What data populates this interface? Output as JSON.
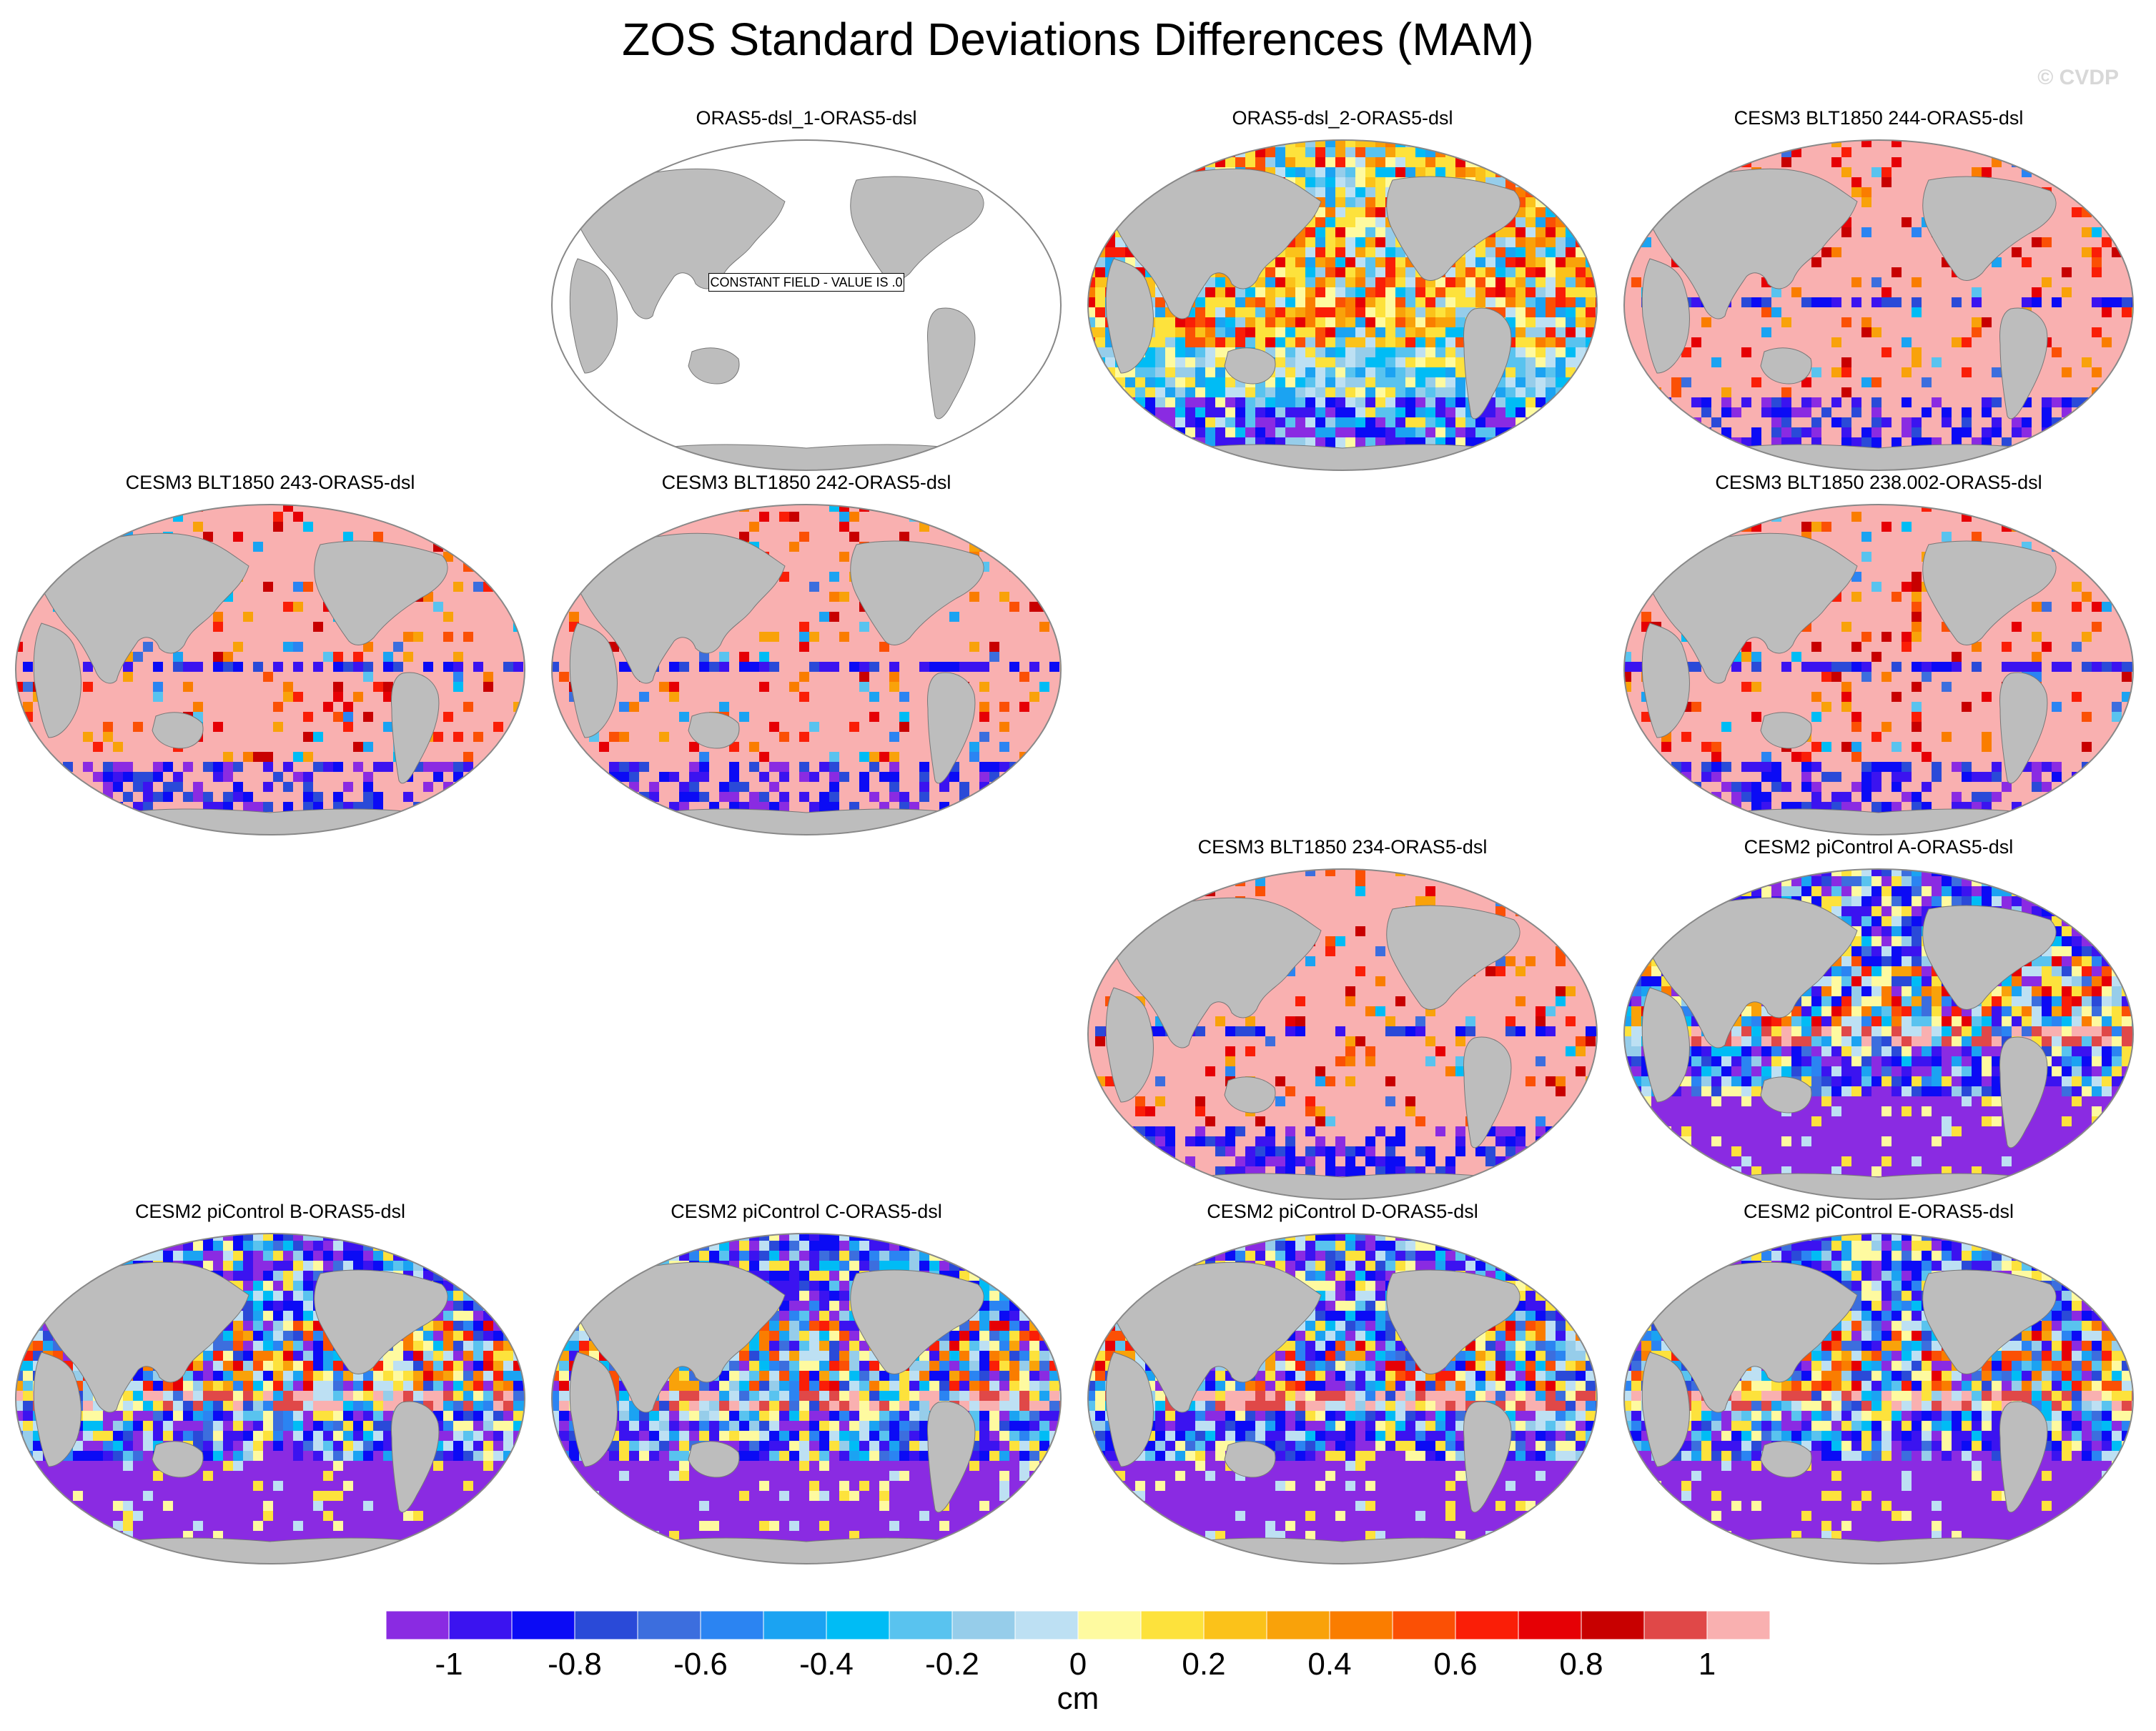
{
  "title": "ZOS Standard Deviations Differences (MAM)",
  "watermark": "© CVDP",
  "panels": [
    {
      "label": "ORAS5-dsl_1-ORAS5-dsl",
      "row": 0,
      "col": 1,
      "pattern": "constant"
    },
    {
      "label": "ORAS5-dsl_2-ORAS5-dsl",
      "row": 0,
      "col": 2,
      "pattern": "mixed"
    },
    {
      "label": "CESM3 BLT1850 244-ORAS5-dsl",
      "row": 0,
      "col": 3,
      "pattern": "pink"
    },
    {
      "label": "CESM3 BLT1850 243-ORAS5-dsl",
      "row": 1,
      "col": 0,
      "pattern": "pink"
    },
    {
      "label": "CESM3 BLT1850 242-ORAS5-dsl",
      "row": 1,
      "col": 1,
      "pattern": "pink"
    },
    {
      "label": "CESM3 BLT1850 238.002-ORAS5-dsl",
      "row": 1,
      "col": 3,
      "pattern": "pink"
    },
    {
      "label": "CESM3 BLT1850 234-ORAS5-dsl",
      "row": 2,
      "col": 2,
      "pattern": "pink"
    },
    {
      "label": "CESM2 piControl A-ORAS5-dsl",
      "row": 2,
      "col": 3,
      "pattern": "purple"
    },
    {
      "label": "CESM2 piControl B-ORAS5-dsl",
      "row": 3,
      "col": 0,
      "pattern": "purple"
    },
    {
      "label": "CESM2 piControl C-ORAS5-dsl",
      "row": 3,
      "col": 1,
      "pattern": "purple"
    },
    {
      "label": "CESM2 piControl D-ORAS5-dsl",
      "row": 3,
      "col": 2,
      "pattern": "purple"
    },
    {
      "label": "CESM2 piControl E-ORAS5-dsl",
      "row": 3,
      "col": 3,
      "pattern": "purple"
    }
  ],
  "constant_field_note": "CONSTANT FIELD - VALUE IS .0",
  "colorbar": {
    "units": "cm",
    "levels": [
      -1,
      -0.9,
      -0.8,
      -0.7,
      -0.6,
      -0.5,
      -0.4,
      -0.3,
      -0.2,
      -0.1,
      0,
      0.1,
      0.2,
      0.3,
      0.4,
      0.5,
      0.6,
      0.7,
      0.8,
      0.9,
      1
    ],
    "tick_labels": [
      "-1",
      "-0.8",
      "-0.6",
      "-0.4",
      "-0.2",
      "0",
      "0.2",
      "0.4",
      "0.6",
      "0.8",
      "1"
    ],
    "colors": [
      "#8a2be2",
      "#3b13f0",
      "#0b0bf5",
      "#2a4ad8",
      "#3c6ede",
      "#2b84f2",
      "#1ba3f2",
      "#00bcf5",
      "#59c3ef",
      "#96cdea",
      "#bde0f3",
      "#fefaa0",
      "#fde23c",
      "#fbc21a",
      "#f9a20a",
      "#fa7d00",
      "#fb5005",
      "#fa1e07",
      "#e60005",
      "#c80000",
      "#e04848",
      "#f9b0b0"
    ]
  },
  "chart_data": {
    "type": "heatmap",
    "title": "ZOS Standard Deviations Differences (MAM)",
    "projection": "Robinson, Pacific-centered",
    "units": "cm",
    "color_range": [
      -1,
      1
    ],
    "panels": [
      "ORAS5-dsl_1-ORAS5-dsl",
      "ORAS5-dsl_2-ORAS5-dsl",
      "CESM3 BLT1850 244-ORAS5-dsl",
      "CESM3 BLT1850 243-ORAS5-dsl",
      "CESM3 BLT1850 242-ORAS5-dsl",
      "CESM3 BLT1850 238.002-ORAS5-dsl",
      "CESM3 BLT1850 234-ORAS5-dsl",
      "CESM2 piControl A-ORAS5-dsl",
      "CESM2 piControl B-ORAS5-dsl",
      "CESM2 piControl C-ORAS5-dsl",
      "CESM2 piControl D-ORAS5-dsl",
      "CESM2 piControl E-ORAS5-dsl"
    ],
    "constant_value": 0.0
  }
}
